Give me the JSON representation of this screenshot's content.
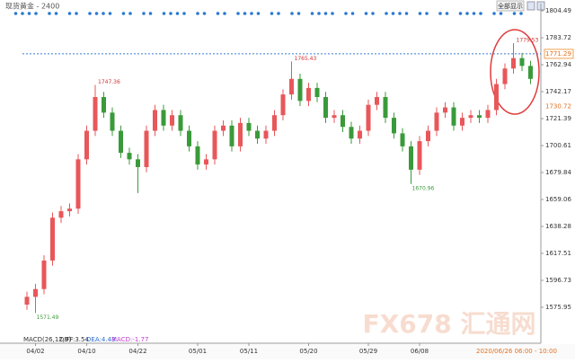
{
  "chart_data": {
    "type": "candlestick",
    "title": "现货黄金 - 2400",
    "button": "全部显示",
    "categories": [
      null,
      "04/02",
      null,
      null,
      null,
      null,
      null,
      "04/10",
      null,
      null,
      null,
      null,
      null,
      "04/22",
      null,
      null,
      null,
      null,
      null,
      null,
      "05/01",
      null,
      null,
      null,
      null,
      null,
      "05/11",
      null,
      null,
      null,
      null,
      null,
      null,
      "05/20",
      null,
      null,
      null,
      null,
      null,
      null,
      "05/29",
      null,
      null,
      null,
      null,
      null,
      "06/08",
      null,
      null,
      null,
      null,
      null,
      null,
      null,
      null,
      null,
      null,
      null,
      null,
      null
    ],
    "open": [
      1578,
      1584,
      1590,
      1612,
      1645,
      1650,
      1652,
      1690,
      1712,
      1738,
      1726,
      1712,
      1695,
      1690,
      1684,
      1712,
      1728,
      1716,
      1724,
      1712,
      1700,
      1686,
      1690,
      1712,
      1716,
      1700,
      1718,
      1712,
      1706,
      1712,
      1724,
      1740,
      1752,
      1735,
      1745,
      1738,
      1722,
      1724,
      1715,
      1706,
      1712,
      1732,
      1738,
      1722,
      1710,
      1700,
      1682,
      1704,
      1712,
      1726,
      1730,
      1716,
      1722,
      1724,
      1722,
      1728,
      1748,
      1760,
      1768,
      1762
    ],
    "high": [
      1588,
      1594,
      1616,
      1649,
      1654,
      1656,
      1694,
      1716,
      1747.36,
      1742,
      1730,
      1716,
      1699,
      1694,
      1716,
      1732,
      1732,
      1728,
      1728,
      1716,
      1704,
      1694,
      1716,
      1720,
      1720,
      1722,
      1722,
      1716,
      1716,
      1728,
      1744,
      1765.43,
      1756,
      1749,
      1749,
      1742,
      1728,
      1728,
      1719,
      1716,
      1736,
      1742,
      1742,
      1726,
      1714,
      1704,
      1708,
      1716,
      1730,
      1734,
      1734,
      1726,
      1728,
      1728,
      1732,
      1752,
      1764,
      1779.53,
      1772,
      1766
    ],
    "low": [
      1574,
      1571.49,
      1586,
      1608,
      1641,
      1646,
      1648,
      1686,
      1708,
      1722,
      1708,
      1691,
      1686,
      1664,
      1680,
      1708,
      1712,
      1712,
      1708,
      1696,
      1682,
      1682,
      1686,
      1708,
      1696,
      1696,
      1708,
      1702,
      1702,
      1708,
      1720,
      1736,
      1731,
      1731,
      1734,
      1718,
      1718,
      1711,
      1702,
      1702,
      1708,
      1728,
      1718,
      1706,
      1696,
      1670.96,
      1678,
      1700,
      1708,
      1722,
      1712,
      1712,
      1718,
      1718,
      1718,
      1724,
      1744,
      1756,
      1758,
      1748
    ],
    "close": [
      1584,
      1590,
      1612,
      1645,
      1650,
      1652,
      1690,
      1712,
      1738,
      1726,
      1712,
      1695,
      1690,
      1684,
      1712,
      1728,
      1716,
      1724,
      1712,
      1700,
      1686,
      1690,
      1712,
      1716,
      1700,
      1718,
      1712,
      1706,
      1712,
      1724,
      1740,
      1752,
      1735,
      1745,
      1738,
      1722,
      1724,
      1715,
      1706,
      1712,
      1732,
      1738,
      1722,
      1710,
      1700,
      1682,
      1704,
      1712,
      1726,
      1730,
      1716,
      1722,
      1724,
      1722,
      1728,
      1748,
      1760,
      1768,
      1762,
      1752
    ],
    "up_color": "#e8575a",
    "down_color": "#3a9a3a",
    "last_price": 1771.29,
    "marker_price": 1730.72,
    "ylim": [
      1548.24,
      1810.03
    ],
    "yticks": [
      1575.95,
      1596.73,
      1617.51,
      1638.28,
      1659.06,
      1679.84,
      1700.61,
      1721.39,
      1742.17,
      1762.94,
      1783.72,
      1804.49
    ],
    "macd": "MACD(26,12,9)",
    "diff": "DIFF:3.54",
    "dea": "DEA:4.43",
    "macd_value": "MACD:-1.77",
    "cursor_time": "2020/06/26 06:00 - 10:00",
    "watermark": "FX678 汇通网"
  }
}
